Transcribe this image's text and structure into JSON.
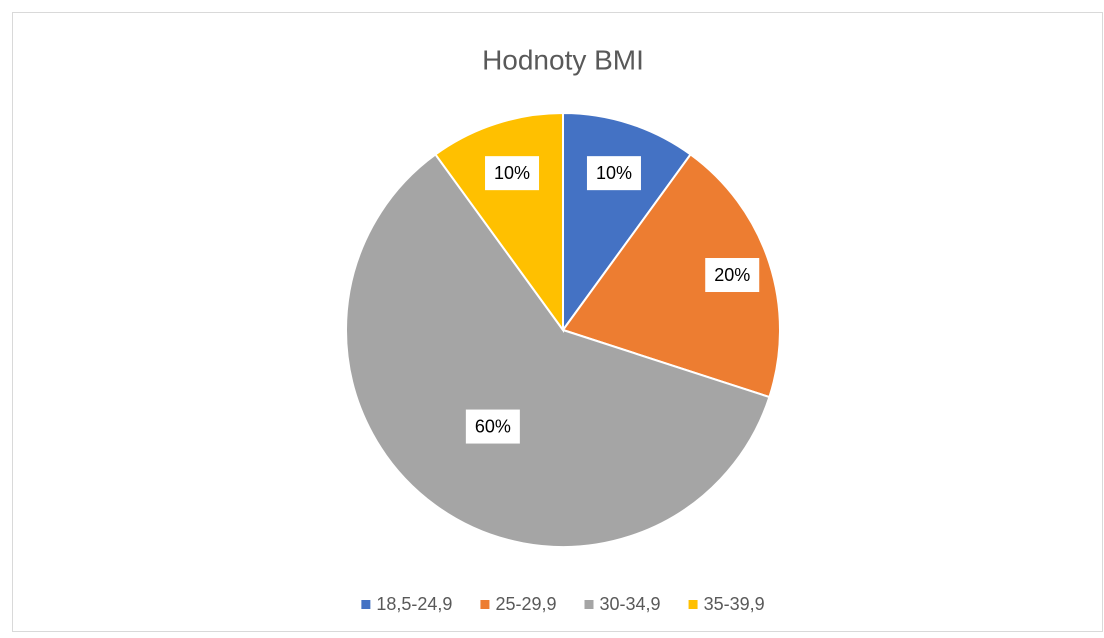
{
  "chart_data": {
    "type": "pie",
    "title": "Hodnoty BMI",
    "categories": [
      "18,5-24,9",
      "25-29,9",
      "30-34,9",
      "35-39,9"
    ],
    "values": [
      10,
      20,
      60,
      10
    ],
    "value_labels": [
      "10%",
      "20%",
      "60%",
      "10%"
    ],
    "colors": [
      "#4472c4",
      "#ed7d31",
      "#a5a5a5",
      "#ffc000"
    ],
    "legend": "bottom"
  }
}
